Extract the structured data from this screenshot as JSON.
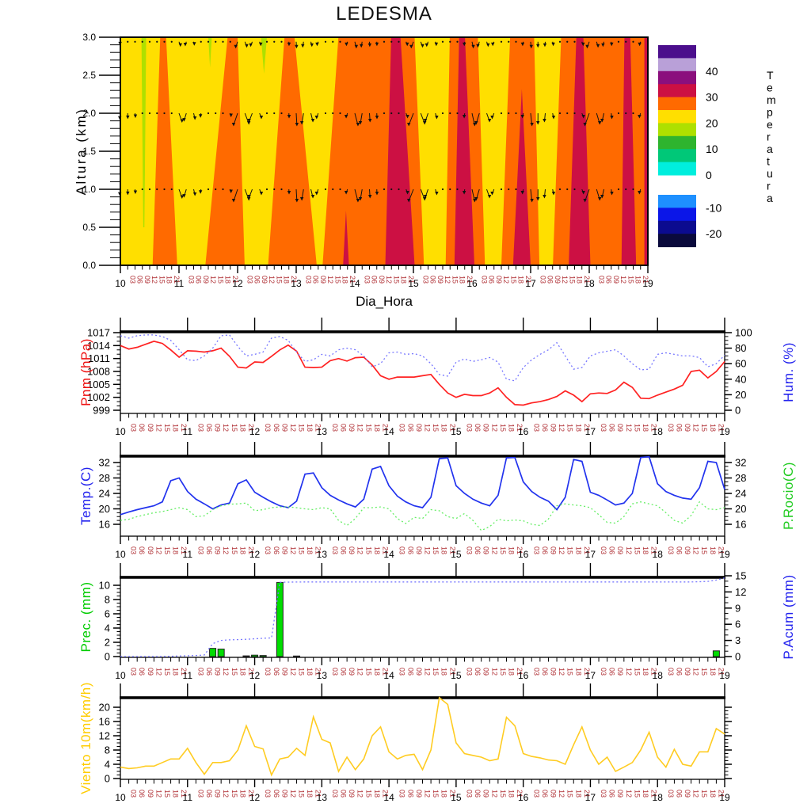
{
  "title": "LEDESMA",
  "x_axis": {
    "days": [
      10,
      11,
      12,
      13,
      14,
      15,
      16,
      17,
      18,
      19
    ],
    "hour_labels": [
      "03",
      "06",
      "09",
      "12",
      "15",
      "18",
      "21"
    ],
    "hour_label_color": "#b03035",
    "day_label_color": "#000000",
    "xlabel": "Dia_Hora"
  },
  "chart_data": [
    {
      "type": "heatmap",
      "name": "temperature-height-contour",
      "title": "LEDESMA",
      "xlabel": "Dia_Hora",
      "ylabel": "Altura (km)",
      "x_range": [
        10,
        19
      ],
      "y_range": [
        0,
        3
      ],
      "y_majors": [
        0.0,
        0.5,
        1.0,
        1.5,
        2.0,
        2.5,
        3.0
      ],
      "y_minor_step": 0.1,
      "background_band_color": "#ffdf00",
      "bands": {
        "orange_bg": [
          [
            [
              13.72,
              3
            ],
            [
              19,
              3
            ],
            [
              19,
              0
            ],
            [
              13.45,
              0
            ]
          ]
        ],
        "orange": [
          [
            [
              10.68,
              3
            ],
            [
              10.78,
              3
            ],
            [
              10.97,
              0
            ],
            [
              10.55,
              0
            ]
          ],
          [
            [
              11.83,
              3
            ],
            [
              12.0,
              3
            ],
            [
              12.12,
              0
            ],
            [
              11.45,
              0
            ]
          ],
          [
            [
              12.8,
              3
            ],
            [
              12.97,
              3
            ],
            [
              13.35,
              0
            ],
            [
              12.52,
              0
            ]
          ]
        ],
        "yellow_wedges": [
          [
            [
              15.02,
              3
            ],
            [
              15.62,
              3
            ],
            [
              15.55,
              0
            ],
            [
              15.18,
              0
            ]
          ],
          [
            [
              16.1,
              3
            ],
            [
              16.65,
              3
            ],
            [
              16.5,
              0
            ],
            [
              16.22,
              0
            ]
          ],
          [
            [
              17.06,
              3
            ],
            [
              17.52,
              3
            ],
            [
              17.38,
              0
            ],
            [
              17.15,
              0
            ]
          ]
        ],
        "crimson": [
          [
            [
              13.8,
              0
            ],
            [
              13.85,
              0.72
            ],
            [
              13.9,
              0
            ]
          ],
          [
            [
              14.62,
              3
            ],
            [
              14.78,
              3
            ],
            [
              15.02,
              0
            ],
            [
              14.52,
              0
            ]
          ],
          [
            [
              15.78,
              3
            ],
            [
              15.88,
              3
            ],
            [
              16.04,
              0
            ],
            [
              15.7,
              0
            ]
          ],
          [
            [
              16.7,
              0
            ],
            [
              16.85,
              2.32
            ],
            [
              17.0,
              0
            ]
          ],
          [
            [
              17.78,
              3
            ],
            [
              17.9,
              3
            ],
            [
              18.02,
              0
            ],
            [
              17.65,
              0
            ]
          ],
          [
            [
              18.6,
              3
            ],
            [
              18.7,
              3
            ],
            [
              18.8,
              0
            ],
            [
              18.55,
              0
            ]
          ],
          [
            [
              18.94,
              3
            ],
            [
              19,
              3
            ],
            [
              19,
              0
            ],
            [
              18.94,
              0
            ]
          ]
        ],
        "green_strips": [
          [
            [
              10.36,
              3
            ],
            [
              10.44,
              3
            ],
            [
              10.41,
              0.5
            ],
            [
              10.39,
              0.5
            ]
          ],
          [
            [
              11.5,
              3
            ],
            [
              11.56,
              3
            ],
            [
              11.53,
              2.6
            ]
          ],
          [
            [
              12.4,
              3
            ],
            [
              12.5,
              3
            ],
            [
              12.45,
              2.52
            ]
          ]
        ]
      },
      "band_colors": {
        "orange": "#ff6a00",
        "crimson": "#cc1043",
        "yellow": "#ffdf00",
        "green": "#aee000"
      },
      "wind_arrows": {
        "rows_km": [
          1.0,
          2.0
        ],
        "top_row_km": 2.94,
        "len_by_hour": [
          15,
          13,
          10,
          6,
          3,
          2,
          2,
          5
        ],
        "top_len_by_hour": [
          7,
          6,
          5,
          4,
          2,
          2,
          2,
          4
        ],
        "day_scale": [
          0.45,
          0.7,
          1,
          1,
          1,
          1,
          1,
          1,
          1
        ],
        "color": "#111111"
      },
      "legend": {
        "title_letters": [
          "T",
          "e",
          "m",
          "p",
          "e",
          "r",
          "a",
          "t",
          "u",
          "r",
          "a"
        ],
        "upper_colors": [
          "#4b0e8c",
          "#b9a0d8",
          "#8b0f7d",
          "#cc1043",
          "#ff6a00",
          "#ffdf00",
          "#aee000",
          "#2eb42e",
          "#00c878",
          "#00eedd"
        ],
        "lower_colors": [
          "#1e90ff",
          "#0b16e8",
          "#0b0b8f",
          "#0a0a3c"
        ],
        "upper_labels": [
          {
            "text": "40",
            "after_block": 2
          },
          {
            "text": "30",
            "after_block": 4
          },
          {
            "text": "20",
            "after_block": 6
          },
          {
            "text": "10",
            "after_block": 8
          },
          {
            "text": "0",
            "after_block": 10
          }
        ],
        "lower_labels": [
          {
            "text": "-10",
            "after_block": 1
          },
          {
            "text": "-20",
            "after_block": 3
          }
        ]
      }
    },
    {
      "type": "line",
      "name": "pressure-humidity",
      "left_axis": {
        "title": "Pnm (hPa)",
        "color": "#ee1111",
        "majors": [
          999,
          1002,
          1005,
          1008,
          1011,
          1014,
          1017
        ],
        "minor_step": 1,
        "map": [
          [
            999,
            518
          ],
          [
            1017,
            420
          ]
        ]
      },
      "right_axis": {
        "title": "Hum. (%)",
        "color": "#2222ee",
        "majors": [
          0,
          20,
          40,
          60,
          80,
          100
        ],
        "minor_step": 5,
        "map": [
          [
            0,
            518
          ],
          [
            100,
            420
          ]
        ]
      },
      "series": [
        {
          "name": "Pnm",
          "axis": "left",
          "color": "#ff2222",
          "width": 1.7,
          "dash": null,
          "key": "pnm"
        },
        {
          "name": "Hum",
          "axis": "right",
          "color": "#7777ff",
          "width": 1.3,
          "dash": "2 3",
          "key": "hum"
        }
      ]
    },
    {
      "type": "line",
      "name": "temperature-dewpoint",
      "left_axis": {
        "title": "Temp.(C)",
        "color": "#2222ee",
        "majors": [
          16,
          20,
          24,
          28,
          32
        ],
        "minor_step": 1,
        "map": [
          [
            16,
            662
          ],
          [
            32,
            584
          ]
        ]
      },
      "right_axis": {
        "title": "P.Rocio(C)",
        "color": "#22cc22",
        "majors": [
          16,
          20,
          24,
          28,
          32
        ],
        "minor_step": 1,
        "map": [
          [
            16,
            662
          ],
          [
            32,
            584
          ]
        ]
      },
      "series": [
        {
          "name": "Temp",
          "axis": "left",
          "color": "#2233ee",
          "width": 1.7,
          "dash": null,
          "key": "temp"
        },
        {
          "name": "P.Rocio",
          "axis": "right",
          "color": "#66ee66",
          "width": 1.3,
          "dash": "2 3",
          "key": "rocio"
        }
      ]
    },
    {
      "type": "bar-line",
      "name": "precipitation",
      "left_axis": {
        "title": "Prec. (mm)",
        "color": "#00cc00",
        "majors": [
          0,
          2,
          4,
          6,
          8,
          10
        ],
        "minor_step": 0.5,
        "map": [
          [
            0,
            829
          ],
          [
            10,
            739
          ]
        ]
      },
      "right_axis": {
        "title": "P.Acum (mm)",
        "color": "#2222ee",
        "majors": [
          0,
          3,
          6,
          9,
          12,
          15
        ],
        "minor_step": 1,
        "map": [
          [
            0,
            829
          ],
          [
            15,
            727
          ]
        ]
      },
      "bars": {
        "name": "Prec",
        "axis": "left",
        "fill": "#00dd00",
        "stroke": "#222222",
        "key": "prec_sparse"
      },
      "series": [
        {
          "name": "P.Acum",
          "axis": "right",
          "color": "#7777ff",
          "width": 1.3,
          "dash": "2 3",
          "key": "pacum"
        }
      ]
    },
    {
      "type": "line",
      "name": "wind",
      "left_axis": {
        "title": "Viento 10m(km/h)",
        "color": "#ffcc00",
        "majors": [
          0,
          4,
          8,
          12,
          16,
          20
        ],
        "minor_step": 1,
        "map": [
          [
            0,
            983
          ],
          [
            20,
            893
          ]
        ]
      },
      "right_axis": {
        "title": "",
        "color": "#000000",
        "majors": [
          0,
          4,
          8,
          12,
          16,
          20
        ],
        "minor_step": 1,
        "map": [
          [
            0,
            983
          ],
          [
            20,
            893
          ]
        ],
        "no_labels": true
      },
      "series": [
        {
          "name": "Viento",
          "axis": "left",
          "color": "#ffcc22",
          "width": 1.6,
          "dash": null,
          "key": "wind"
        }
      ]
    }
  ],
  "series_values": {
    "pnm": [
      1014.0,
      1013.2,
      1013.6,
      1014.3,
      1015.0,
      1014.5,
      1013.0,
      1011.3,
      1012.8,
      1012.7,
      1012.5,
      1012.8,
      1013.4,
      1011.5,
      1009.0,
      1008.8,
      1010.2,
      1010.1,
      1011.5,
      1013.0,
      1014.1,
      1012.7,
      1009.0,
      1008.9,
      1009.0,
      1010.5,
      1011.0,
      1010.4,
      1011.2,
      1011.3,
      1009.5,
      1007.0,
      1006.2,
      1006.7,
      1006.7,
      1006.7,
      1007.0,
      1007.3,
      1005.0,
      1003.0,
      1002.0,
      1002.7,
      1002.4,
      1002.4,
      1003.0,
      1004.2,
      1002.0,
      1000.3,
      1000.2,
      1000.7,
      1001.0,
      1001.5,
      1002.2,
      1003.5,
      1002.5,
      1001.0,
      1002.8,
      1003.0,
      1002.9,
      1003.7,
      1005.5,
      1004.3,
      1001.8,
      1001.7,
      1002.5,
      1003.2,
      1003.9,
      1004.8,
      1008.0,
      1008.3,
      1006.5,
      1008.0,
      1010.3
    ],
    "hum": [
      96,
      93,
      96,
      97,
      97,
      95,
      90,
      78,
      65,
      64,
      70,
      80,
      96,
      97,
      82,
      70,
      72,
      75,
      93,
      95,
      90,
      75,
      63,
      65,
      72,
      70,
      78,
      80,
      78,
      70,
      56,
      60,
      74,
      75,
      72,
      73,
      70,
      60,
      46,
      44,
      62,
      66,
      63,
      65,
      68,
      62,
      40,
      38,
      55,
      65,
      72,
      78,
      87,
      70,
      53,
      55,
      70,
      74,
      76,
      78,
      70,
      60,
      52,
      53,
      72,
      74,
      72,
      70,
      70,
      68,
      56,
      60,
      71
    ],
    "temp": [
      18.5,
      19.2,
      19.8,
      20.3,
      20.8,
      21.8,
      27.3,
      28.0,
      24.5,
      22.5,
      21.3,
      20.0,
      21.0,
      21.5,
      26.5,
      27.5,
      24.3,
      23.0,
      21.8,
      20.8,
      20.3,
      22.0,
      29.0,
      29.3,
      25.5,
      23.5,
      22.3,
      21.3,
      20.5,
      22.5,
      30.3,
      31.0,
      26.0,
      23.3,
      21.8,
      20.8,
      20.3,
      23.0,
      33.0,
      33.2,
      26.0,
      24.0,
      22.5,
      21.5,
      20.8,
      23.5,
      33.2,
      33.3,
      27.0,
      24.5,
      23.0,
      22.0,
      19.8,
      23.0,
      32.8,
      32.3,
      24.3,
      23.5,
      22.3,
      21.0,
      21.5,
      24.0,
      33.3,
      33.5,
      26.5,
      24.5,
      23.5,
      22.8,
      22.5,
      25.5,
      32.3,
      32.0,
      25.0
    ],
    "rocio": [
      17.0,
      17.3,
      18.0,
      18.5,
      19.0,
      19.3,
      19.8,
      20.3,
      19.8,
      18.0,
      18.2,
      19.8,
      20.8,
      21.2,
      21.3,
      21.5,
      19.5,
      19.8,
      20.3,
      20.5,
      20.5,
      20.3,
      20.0,
      19.8,
      20.3,
      20.0,
      17.0,
      15.7,
      17.5,
      20.3,
      20.3,
      20.5,
      20.0,
      17.5,
      16.2,
      17.8,
      17.5,
      19.8,
      19.5,
      18.0,
      17.5,
      18.8,
      17.0,
      14.4,
      15.4,
      17.3,
      16.9,
      17.1,
      16.9,
      16.0,
      15.7,
      17.4,
      20.8,
      21.3,
      21.0,
      20.8,
      20.3,
      18.5,
      16.5,
      16.3,
      18.0,
      21.3,
      21.8,
      21.3,
      20.8,
      19.0,
      17.0,
      16.3,
      18.3,
      21.8,
      20.0,
      19.8,
      20.3
    ],
    "prec_sparse": {
      "11": 1.15,
      "12": 1.05,
      "15": 0.1,
      "16": 0.2,
      "17": 0.15,
      "19": 10.4,
      "21": 0.08,
      "71": 0.8
    },
    "pacum": [
      0,
      0,
      0,
      0,
      0,
      0,
      0.05,
      0.1,
      0.15,
      0.2,
      0.3,
      2.4,
      3.0,
      3.1,
      3.15,
      3.2,
      3.3,
      3.4,
      3.45,
      13.8,
      13.82,
      13.84,
      13.85,
      13.85,
      13.85,
      13.85,
      13.85,
      13.85,
      13.85,
      13.85,
      13.85,
      13.85,
      13.85,
      13.85,
      13.85,
      13.85,
      13.85,
      13.85,
      13.85,
      13.85,
      13.85,
      13.85,
      13.85,
      13.85,
      13.85,
      13.85,
      13.85,
      13.85,
      13.85,
      13.85,
      13.85,
      13.85,
      13.85,
      13.85,
      13.85,
      13.85,
      13.85,
      13.85,
      13.85,
      13.85,
      13.85,
      13.85,
      13.85,
      13.85,
      13.85,
      13.85,
      13.85,
      13.85,
      13.85,
      13.9,
      13.95,
      14.2,
      14.6
    ],
    "wind": [
      3.2,
      2.8,
      3.0,
      3.5,
      3.5,
      4.5,
      5.5,
      5.5,
      8.5,
      4.5,
      1.2,
      4.5,
      4.5,
      5.0,
      8.0,
      14.8,
      9.0,
      8.3,
      1.0,
      5.5,
      6.0,
      8.5,
      6.5,
      17.3,
      11.0,
      10.0,
      2.0,
      6.0,
      2.5,
      5.5,
      12.0,
      14.5,
      7.5,
      5.5,
      6.5,
      6.8,
      2.5,
      8.0,
      22.7,
      20.8,
      10.0,
      7.0,
      6.5,
      6.0,
      5.0,
      5.5,
      17.2,
      14.8,
      7.0,
      6.2,
      5.8,
      5.2,
      5.0,
      4.0,
      9.5,
      14.5,
      8.0,
      4.0,
      6.0,
      2.0,
      3.2,
      4.5,
      8.0,
      13.0,
      6.0,
      3.2,
      8.2,
      4.0,
      3.5,
      7.5,
      7.5,
      14.0,
      12.5
    ]
  }
}
